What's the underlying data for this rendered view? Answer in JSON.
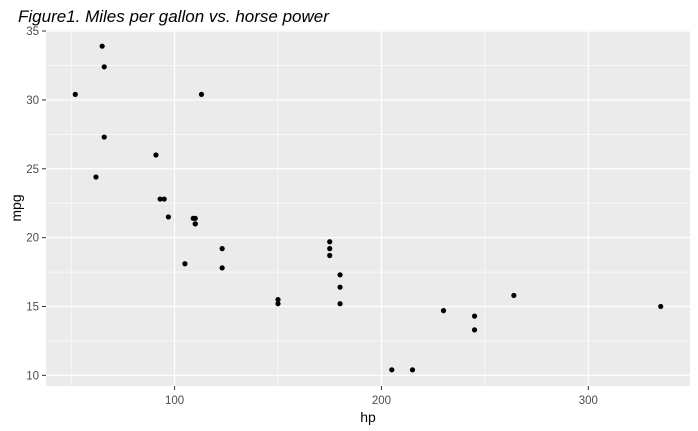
{
  "chart_data": {
    "type": "scatter",
    "title": "Figure1. Miles per gallon vs. horse power",
    "xlabel": "hp",
    "ylabel": "mpg",
    "xlim": [
      37.85,
      349.15
    ],
    "ylim": [
      9.225,
      35.075
    ],
    "x_ticks": [
      100,
      200,
      300
    ],
    "y_ticks": [
      10,
      15,
      20,
      25,
      30,
      35
    ],
    "grid": true,
    "colors": {
      "panel": "#ebebeb",
      "grid": "#ffffff",
      "point": "#000000",
      "tick": "#4d4d4d"
    },
    "points": [
      {
        "x": 110,
        "y": 21.0
      },
      {
        "x": 110,
        "y": 21.0
      },
      {
        "x": 93,
        "y": 22.8
      },
      {
        "x": 110,
        "y": 21.4
      },
      {
        "x": 175,
        "y": 18.7
      },
      {
        "x": 105,
        "y": 18.1
      },
      {
        "x": 245,
        "y": 14.3
      },
      {
        "x": 62,
        "y": 24.4
      },
      {
        "x": 95,
        "y": 22.8
      },
      {
        "x": 123,
        "y": 19.2
      },
      {
        "x": 123,
        "y": 17.8
      },
      {
        "x": 180,
        "y": 16.4
      },
      {
        "x": 180,
        "y": 17.3
      },
      {
        "x": 180,
        "y": 15.2
      },
      {
        "x": 205,
        "y": 10.4
      },
      {
        "x": 215,
        "y": 10.4
      },
      {
        "x": 230,
        "y": 14.7
      },
      {
        "x": 66,
        "y": 32.4
      },
      {
        "x": 52,
        "y": 30.4
      },
      {
        "x": 65,
        "y": 33.9
      },
      {
        "x": 97,
        "y": 21.5
      },
      {
        "x": 150,
        "y": 15.5
      },
      {
        "x": 150,
        "y": 15.2
      },
      {
        "x": 245,
        "y": 13.3
      },
      {
        "x": 175,
        "y": 19.2
      },
      {
        "x": 66,
        "y": 27.3
      },
      {
        "x": 91,
        "y": 26.0
      },
      {
        "x": 113,
        "y": 30.4
      },
      {
        "x": 264,
        "y": 15.8
      },
      {
        "x": 175,
        "y": 19.7
      },
      {
        "x": 335,
        "y": 15.0
      },
      {
        "x": 109,
        "y": 21.4
      }
    ]
  }
}
